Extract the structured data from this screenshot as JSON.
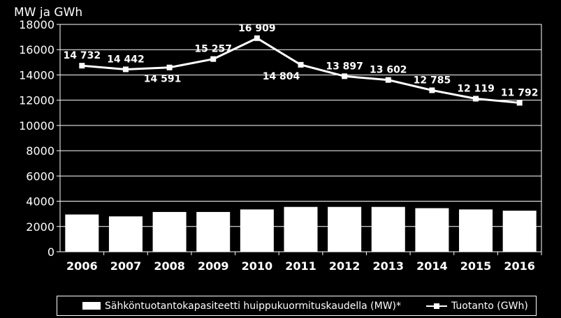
{
  "chart_data": {
    "type": "bar+line",
    "unit_label": "MW ja GWh",
    "categories": [
      "2006",
      "2007",
      "2008",
      "2009",
      "2010",
      "2011",
      "2012",
      "2013",
      "2014",
      "2015",
      "2016"
    ],
    "ylim": [
      0,
      18000
    ],
    "yticks": [
      "0",
      "2000",
      "4000",
      "6000",
      "8000",
      "10000",
      "12000",
      "14000",
      "16000",
      "18000"
    ],
    "grid": true,
    "legend_position": "bottom",
    "series": [
      {
        "name": "Sähköntuotantokapasiteetti huippukuormituskaudella (MW)*",
        "type": "bar",
        "color": "#ffffff",
        "values": [
          2950,
          2800,
          3150,
          3150,
          3350,
          3550,
          3550,
          3550,
          3450,
          3350,
          3250
        ]
      },
      {
        "name": "Tuotanto (GWh)",
        "type": "line",
        "color": "#ffffff",
        "values": [
          14732,
          14442,
          14591,
          15257,
          16909,
          14804,
          13897,
          13602,
          12785,
          12119,
          11792
        ],
        "labels": [
          "14 732",
          "14 442",
          "14 591",
          "15 257",
          "16 909",
          "14 804",
          "13 897",
          "13 602",
          "12 785",
          "12 119",
          "11 792"
        ]
      }
    ]
  }
}
